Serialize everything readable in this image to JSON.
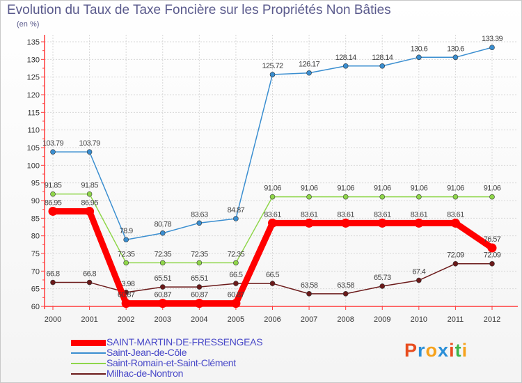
{
  "header": {
    "title": "Evolution du Taux de Taxe Foncière sur les Propriétés Non Bâties",
    "unit": "(en %)"
  },
  "logo": {
    "text": "Proxiti",
    "colors": [
      "#e84c1e",
      "#2a8fd8",
      "#f6a21c",
      "#2a8fd8",
      "#e84c1e",
      "#3cb54a",
      "#f6a21c"
    ]
  },
  "chart_data": {
    "type": "line",
    "title": "Evolution du Taux de Taxe Foncière sur les Propriétés Non Bâties",
    "ylabel": "(en %)",
    "xlabel": "",
    "x": [
      "2000",
      "2001",
      "2002",
      "2003",
      "2004",
      "2005",
      "2006",
      "2007",
      "2008",
      "2009",
      "2010",
      "2011",
      "2012"
    ],
    "ylim": [
      60,
      135
    ],
    "yticks": [
      60,
      65,
      70,
      75,
      80,
      85,
      90,
      95,
      100,
      105,
      110,
      115,
      120,
      125,
      130,
      135
    ],
    "legend_position": "bottom-left",
    "series": [
      {
        "name": "Saint-Jean-de-Côle",
        "color": "#3a8ed0",
        "emphasis": false,
        "values": [
          103.79,
          103.79,
          78.9,
          80.78,
          83.63,
          84.87,
          125.72,
          126.17,
          128.14,
          128.14,
          130.6,
          130.6,
          133.39
        ],
        "labels": [
          "103.79",
          "103.79",
          "78.9",
          "80.78",
          "83.63",
          "84.87",
          "125.72",
          "126.17",
          "128.14",
          "128.14",
          "130.6",
          "130.6",
          "133.39"
        ]
      },
      {
        "name": "Saint-Romain-et-Saint-Clément",
        "color": "#8fd64a",
        "emphasis": false,
        "values": [
          91.85,
          91.85,
          72.35,
          72.35,
          72.35,
          72.35,
          91.06,
          91.06,
          91.06,
          91.06,
          91.06,
          91.06,
          91.06
        ],
        "labels": [
          "91.85",
          "91.85",
          "72.35",
          "72.35",
          "72.35",
          "72.35",
          "91.06",
          "91.06",
          "91.06",
          "91.06",
          "91.06",
          "91.06",
          "91.06"
        ]
      },
      {
        "name": "Milhac-de-Nontron",
        "color": "#6b1a1a",
        "emphasis": false,
        "values": [
          66.8,
          66.8,
          63.98,
          65.51,
          65.51,
          66.5,
          66.5,
          63.58,
          63.58,
          65.73,
          67.4,
          72.09,
          72.09
        ],
        "labels": [
          "66.8",
          "66.8",
          "63.98",
          "65.51",
          "65.51",
          "66.5",
          "66.5",
          "63.58",
          "63.58",
          "65.73",
          "67.4",
          "72.09",
          "72.09"
        ]
      },
      {
        "name": "SAINT-MARTIN-DE-FRESSENGEAS",
        "color": "#ff0000",
        "emphasis": true,
        "values": [
          86.95,
          86.95,
          60.87,
          60.87,
          60.87,
          60.87,
          83.61,
          83.61,
          83.61,
          83.61,
          83.61,
          83.61,
          76.57
        ],
        "labels": [
          "86.95",
          "86.95",
          "60.87",
          "60.87",
          "60.87",
          "60.87",
          "83.61",
          "83.61",
          "83.61",
          "83.61",
          "83.61",
          "83.61",
          "76.57"
        ]
      }
    ],
    "legend_order": [
      "SAINT-MARTIN-DE-FRESSENGEAS",
      "Saint-Jean-de-Côle",
      "Saint-Romain-et-Saint-Clément",
      "Milhac-de-Nontron"
    ]
  }
}
